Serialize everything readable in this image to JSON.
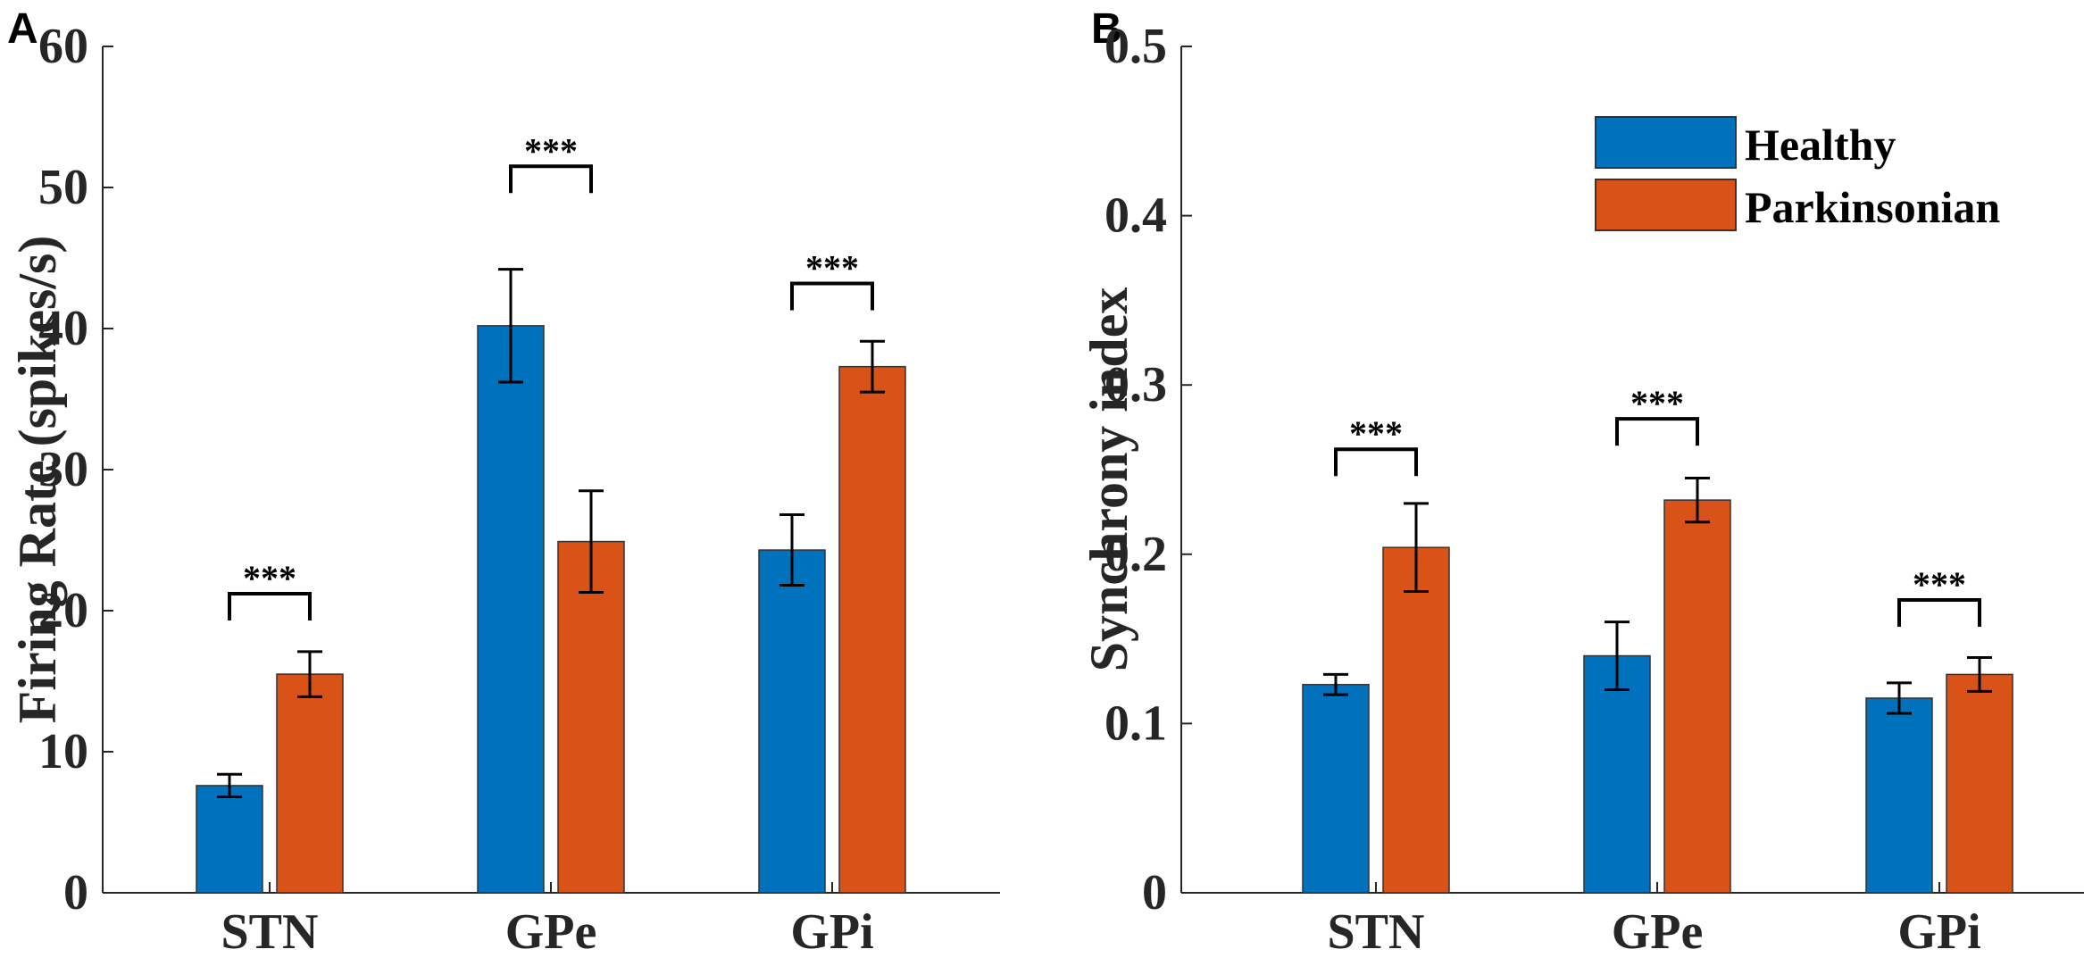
{
  "colors": {
    "healthy": "#0072BD",
    "parkinsonian": "#D95319",
    "axis": "#262626"
  },
  "chart_data": [
    {
      "panel": "A",
      "type": "bar",
      "categories": [
        "STN",
        "GPe",
        "GPi"
      ],
      "ylabel": "Firing Rate (spikes/s)",
      "xlabel": "",
      "ylim": [
        0,
        60
      ],
      "yticks": [
        0,
        10,
        20,
        30,
        40,
        50,
        60
      ],
      "ytick_labels": [
        "0",
        "10",
        "20",
        "30",
        "40",
        "50",
        "60"
      ],
      "series": [
        {
          "name": "Healthy",
          "values": [
            7.6,
            40.2,
            24.3
          ],
          "errors": [
            0.8,
            4.0,
            2.5
          ]
        },
        {
          "name": "Parkinsonian",
          "values": [
            15.5,
            24.9,
            37.3
          ],
          "errors": [
            1.6,
            3.6,
            1.8
          ]
        }
      ],
      "significance": [
        {
          "category": "STN",
          "label": "***",
          "y": 21.2
        },
        {
          "category": "GPe",
          "label": "***",
          "y": 51.5
        },
        {
          "category": "GPi",
          "label": "***",
          "y": 43.2
        }
      ]
    },
    {
      "panel": "B",
      "type": "bar",
      "categories": [
        "STN",
        "GPe",
        "GPi"
      ],
      "ylabel": "Synchrony index",
      "xlabel": "",
      "ylim": [
        0,
        0.5
      ],
      "yticks": [
        0,
        0.1,
        0.2,
        0.3,
        0.4,
        0.5
      ],
      "ytick_labels": [
        "0",
        "0.1",
        "0.2",
        "0.3",
        "0.4",
        "0.5"
      ],
      "series": [
        {
          "name": "Healthy",
          "values": [
            0.123,
            0.14,
            0.115
          ],
          "errors": [
            0.006,
            0.02,
            0.009
          ]
        },
        {
          "name": "Parkinsonian",
          "values": [
            0.204,
            0.232,
            0.129
          ],
          "errors": [
            0.026,
            0.013,
            0.01
          ]
        }
      ],
      "legend": {
        "position": "top-right",
        "entries": [
          "Healthy",
          "Parkinsonian"
        ]
      },
      "significance": [
        {
          "category": "STN",
          "label": "***",
          "y": 0.262
        },
        {
          "category": "GPe",
          "label": "***",
          "y": 0.28
        },
        {
          "category": "GPi",
          "label": "***",
          "y": 0.173
        }
      ]
    }
  ]
}
